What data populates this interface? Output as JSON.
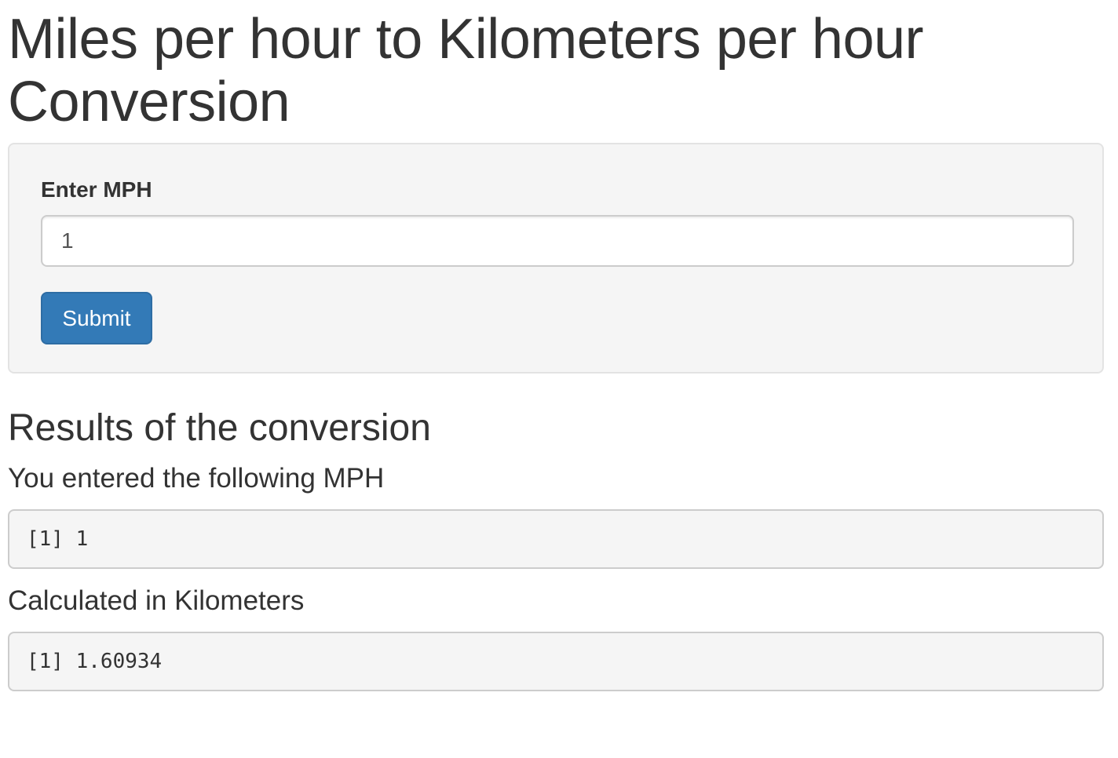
{
  "title": "Miles per hour to Kilometers per hour Conversion",
  "form": {
    "label": "Enter MPH",
    "input_value": "1",
    "submit_label": "Submit"
  },
  "results": {
    "heading": "Results of the conversion",
    "entered_heading": "You entered the following MPH",
    "entered_output": "[1] 1",
    "calculated_heading": "Calculated in Kilometers",
    "calculated_output": "[1] 1.60934"
  },
  "colors": {
    "primary_button": "#337ab7",
    "panel_background": "#f5f5f5",
    "text": "#333333"
  }
}
